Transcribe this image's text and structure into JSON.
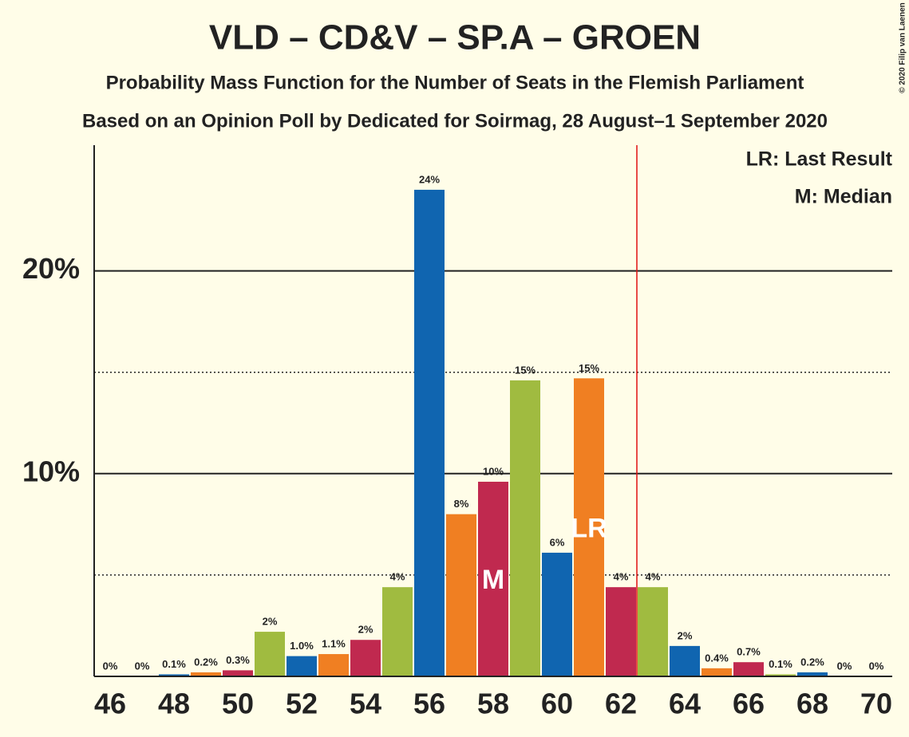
{
  "chart_data": {
    "type": "bar",
    "title": "VLD – CD&V – SP.A – GROEN",
    "subtitle": "Probability Mass Function for the Number of Seats in the Flemish Parliament",
    "subtitle2": "Based on an Opinion Poll by Dedicated for Soirmag, 28 August–1 September 2020",
    "copyright": "© 2020 Filip van Laenen",
    "legend": [
      "LR: Last Result",
      "M: Median"
    ],
    "x": [
      46,
      47,
      48,
      49,
      50,
      51,
      52,
      53,
      54,
      55,
      56,
      57,
      58,
      59,
      60,
      61,
      62,
      63,
      64,
      65,
      66,
      67,
      68,
      69,
      70
    ],
    "values": [
      0,
      0,
      0.1,
      0.2,
      0.3,
      2.2,
      1.0,
      1.1,
      1.8,
      4.4,
      24.0,
      8.0,
      9.6,
      14.6,
      6.1,
      14.7,
      4.4,
      4.4,
      1.5,
      0.4,
      0.7,
      0.1,
      0.2,
      0,
      0
    ],
    "value_labels": [
      "0%",
      "0%",
      "0.1%",
      "0.2%",
      "0.3%",
      "2%",
      "1.0%",
      "1.1%",
      "2%",
      "4%",
      "24%",
      "8%",
      "10%",
      "15%",
      "6%",
      "15%",
      "4%",
      "4%",
      "2%",
      "0.4%",
      "0.7%",
      "0.1%",
      "0.2%",
      "0%",
      "0%"
    ],
    "colors": [
      "#c0294f",
      "#a0bb40",
      "#1065b0",
      "#f07f22"
    ],
    "annotations": [
      {
        "x": 58,
        "text": "M"
      },
      {
        "x": 61,
        "text": "LR"
      }
    ],
    "majority_line": 62.5,
    "majority_color": "#e01010",
    "xlim": [
      45.5,
      70.5
    ],
    "xticks": [
      46,
      48,
      50,
      52,
      54,
      56,
      58,
      60,
      62,
      64,
      66,
      68,
      70
    ],
    "ylim": [
      0,
      26.2
    ],
    "yticks": [
      {
        "value": 10,
        "label": "10%"
      },
      {
        "value": 20,
        "label": "20%"
      }
    ],
    "minor_grid": [
      5,
      15
    ]
  }
}
